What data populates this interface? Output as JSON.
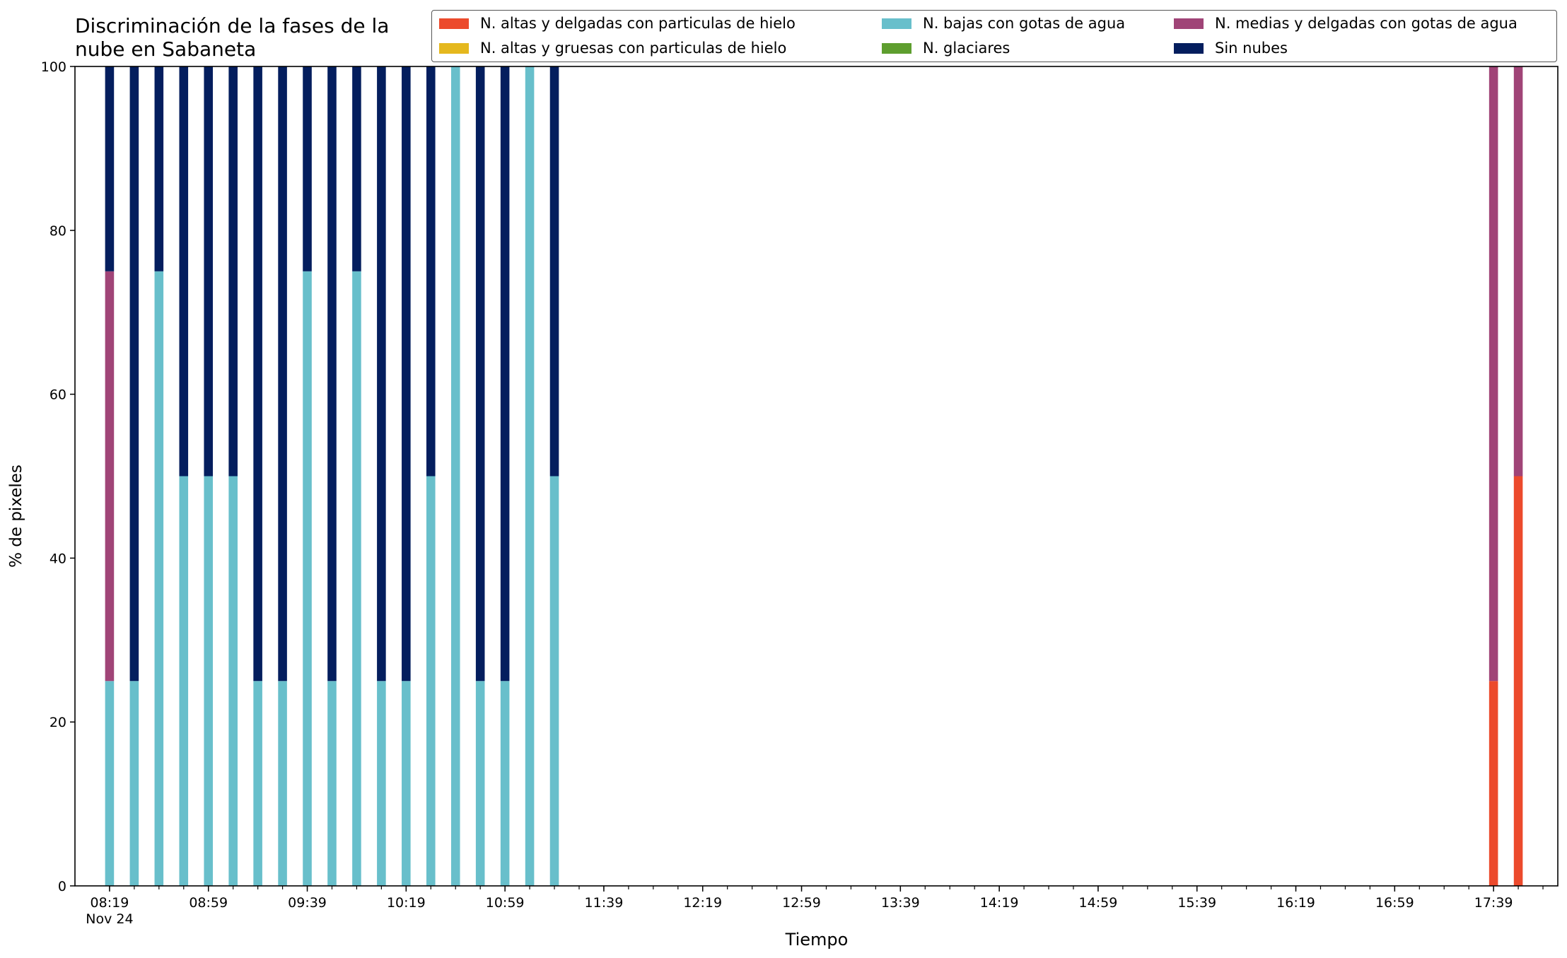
{
  "chart_data": {
    "type": "bar",
    "stacked": true,
    "title": "Discriminación de la fases de la\nnube en Sabaneta",
    "xlabel": "Tiempo",
    "ylabel": "% de pixeles",
    "ylim": [
      0,
      100
    ],
    "yticks": [
      "0",
      "20",
      "40",
      "60",
      "80",
      "100"
    ],
    "xticks": [
      "08:19\nNov 24",
      "08:59",
      "09:39",
      "10:19",
      "10:59",
      "11:39",
      "12:19",
      "12:59",
      "13:39",
      "14:19",
      "14:59",
      "15:39",
      "16:19",
      "16:59",
      "17:39"
    ],
    "categories": [
      "08:19",
      "08:29",
      "08:39",
      "08:49",
      "08:59",
      "09:09",
      "09:19",
      "09:29",
      "09:39",
      "09:49",
      "09:59",
      "10:09",
      "10:19",
      "10:29",
      "10:39",
      "10:49",
      "10:59",
      "11:09",
      "11:19",
      "17:39",
      "17:49"
    ],
    "series": [
      {
        "name": "N. altas y delgadas con particulas de hielo",
        "color": "#ec4a2c",
        "values": [
          0,
          0,
          0,
          0,
          0,
          0,
          0,
          0,
          0,
          0,
          0,
          0,
          0,
          0,
          0,
          0,
          0,
          0,
          0,
          25,
          50
        ]
      },
      {
        "name": "N. altas y gruesas con particulas de hielo",
        "color": "#e5b81e",
        "values": [
          0,
          0,
          0,
          0,
          0,
          0,
          0,
          0,
          0,
          0,
          0,
          0,
          0,
          0,
          0,
          0,
          0,
          0,
          0,
          0,
          0
        ]
      },
      {
        "name": "N. bajas con gotas de agua",
        "color": "#68bfcb",
        "values": [
          25,
          25,
          75,
          50,
          50,
          50,
          25,
          25,
          75,
          25,
          75,
          25,
          25,
          50,
          100,
          25,
          25,
          100,
          50,
          0,
          0
        ]
      },
      {
        "name": "N. glaciares",
        "color": "#5e9e2e",
        "values": [
          0,
          0,
          0,
          0,
          0,
          0,
          0,
          0,
          0,
          0,
          0,
          0,
          0,
          0,
          0,
          0,
          0,
          0,
          0,
          0,
          0
        ]
      },
      {
        "name": "N. medias y delgadas con gotas de agua",
        "color": "#a04477",
        "values": [
          50,
          0,
          0,
          0,
          0,
          0,
          0,
          0,
          0,
          0,
          0,
          0,
          0,
          0,
          0,
          0,
          0,
          0,
          0,
          75,
          50
        ]
      },
      {
        "name": "Sin nubes",
        "color": "#041e5e",
        "values": [
          25,
          75,
          25,
          50,
          50,
          50,
          75,
          75,
          25,
          75,
          25,
          75,
          75,
          50,
          0,
          75,
          75,
          0,
          50,
          0,
          0
        ]
      }
    ],
    "legend_position": "top-right",
    "grid": false
  }
}
